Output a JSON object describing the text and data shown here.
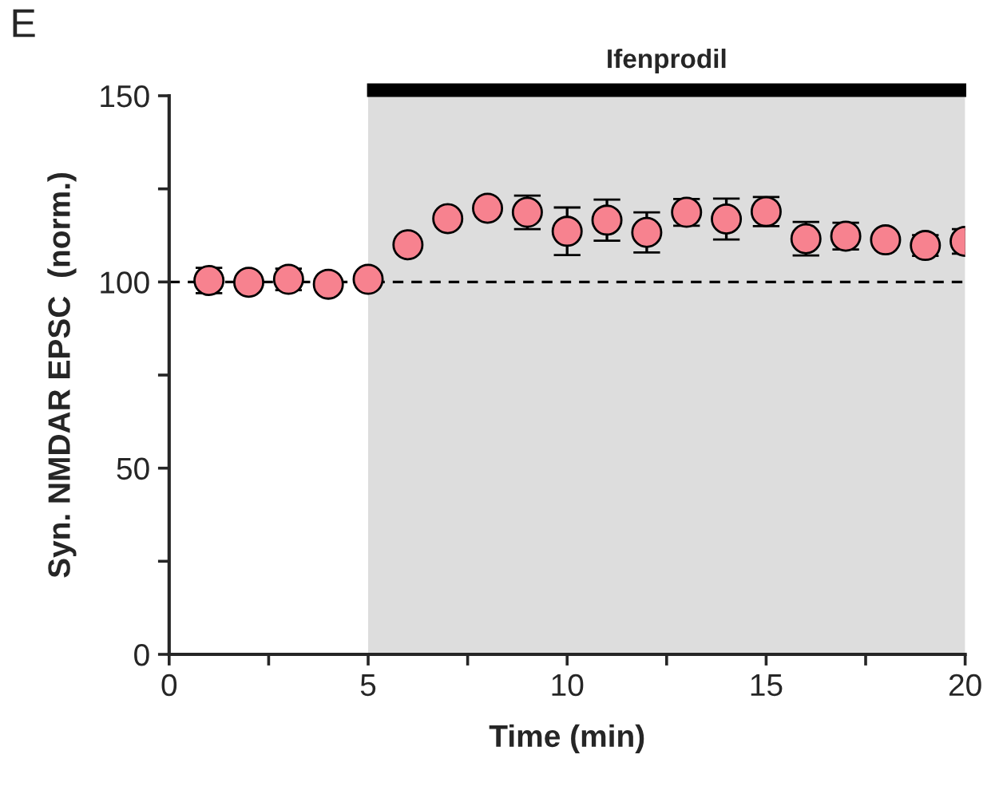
{
  "chart_data": {
    "type": "scatter",
    "xlabel": "Time (min)",
    "ylabel": "Syn. NMDAR EPSC  (norm.)",
    "annotations": [
      "E"
    ],
    "x": [
      1,
      2,
      3,
      4,
      5,
      6,
      7,
      8,
      9,
      10,
      11,
      12,
      13,
      14,
      15,
      16,
      17,
      18,
      19,
      20
    ],
    "series": [
      {
        "color": "#f7828f",
        "values": [
          100.4,
          99.9,
          100.7,
          99.4,
          100.7,
          110,
          117,
          119.8,
          118.7,
          113.6,
          116.6,
          113.3,
          118.7,
          116.9,
          118.9,
          111.6,
          112.3,
          111.3,
          109.8,
          110.9
        ],
        "errors": [
          3.4,
          null,
          2.9,
          null,
          null,
          null,
          null,
          null,
          4.5,
          6.4,
          5.5,
          5.4,
          3.6,
          5.5,
          3.9,
          4.5,
          3.6,
          null,
          2.8,
          3.3
        ]
      }
    ],
    "xlim": [
      0,
      20
    ],
    "ylim": [
      0,
      150
    ],
    "xticks": [
      0,
      {
        "value": 2.5,
        "label": null
      },
      5,
      {
        "value": 7.5,
        "label": null
      },
      10,
      {
        "value": 12.5,
        "label": null
      },
      15,
      {
        "value": 17.5,
        "label": null
      },
      20
    ],
    "yticks": [
      0,
      {
        "value": 25,
        "label": null
      },
      50,
      {
        "value": 75,
        "label": null
      },
      100,
      {
        "value": 125,
        "label": null
      },
      150
    ],
    "marker": "circle",
    "grid": false,
    "legend": false,
    "ref_lines": [
      {
        "axis": "y",
        "value": 100,
        "line_style": "dashed",
        "color": "#000000"
      }
    ],
    "bands": [
      {
        "axis": "x",
        "from": 5,
        "to": 20,
        "label": "Ifenprodil",
        "color": "#dddddd"
      }
    ]
  }
}
